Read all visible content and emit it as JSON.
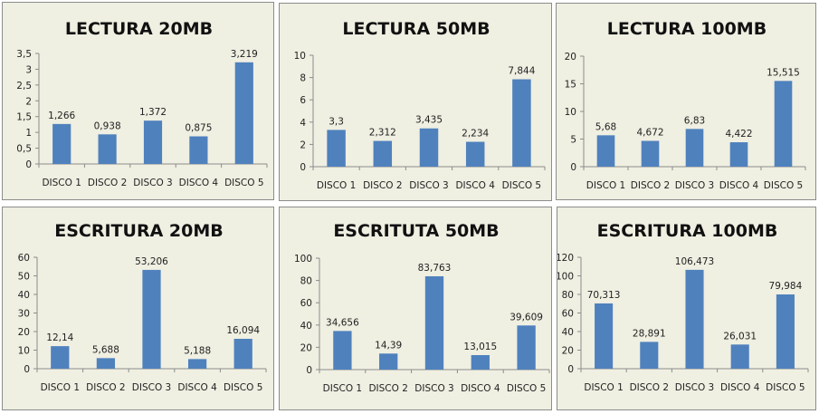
{
  "colors": {
    "bar": "#4f81bd",
    "panel": "#efefe2",
    "axis": "#8c8c8c"
  },
  "chart_data": [
    {
      "type": "bar",
      "title": "LECTURA 20MB",
      "categories": [
        "DISCO 1",
        "DISCO 2",
        "DISCO 3",
        "DISCO 4",
        "DISCO 5"
      ],
      "values": [
        1.266,
        0.938,
        1.372,
        0.875,
        3.219
      ],
      "value_labels": [
        "1,266",
        "0,938",
        "1,372",
        "0,875",
        "3,219"
      ],
      "yticks": [
        "0",
        "0,5",
        "1",
        "1,5",
        "2",
        "2,5",
        "3",
        "3,5"
      ],
      "ylim": [
        0,
        3.5
      ],
      "xlabel": "",
      "ylabel": "",
      "grid": false,
      "legend": "none"
    },
    {
      "type": "bar",
      "title": "LECTURA 50MB",
      "categories": [
        "DISCO 1",
        "DISCO 2",
        "DISCO 3",
        "DISCO 4",
        "DISCO 5"
      ],
      "values": [
        3.3,
        2.312,
        3.435,
        2.234,
        7.844
      ],
      "value_labels": [
        "3,3",
        "2,312",
        "3,435",
        "2,234",
        "7,844"
      ],
      "yticks": [
        "0",
        "2",
        "4",
        "6",
        "8",
        "10"
      ],
      "ylim": [
        0,
        10
      ],
      "xlabel": "",
      "ylabel": "",
      "grid": false,
      "legend": "none"
    },
    {
      "type": "bar",
      "title": "LECTURA 100MB",
      "categories": [
        "DISCO 1",
        "DISCO 2",
        "DISCO 3",
        "DISCO 4",
        "DISCO 5"
      ],
      "values": [
        5.68,
        4.672,
        6.83,
        4.422,
        15.515
      ],
      "value_labels": [
        "5,68",
        "4,672",
        "6,83",
        "4,422",
        "15,515"
      ],
      "yticks": [
        "0",
        "5",
        "10",
        "15",
        "20"
      ],
      "ylim": [
        0,
        20
      ],
      "xlabel": "",
      "ylabel": "",
      "grid": false,
      "legend": "none"
    },
    {
      "type": "bar",
      "title": "ESCRITURA 20MB",
      "categories": [
        "DISCO 1",
        "DISCO 2",
        "DISCO 3",
        "DISCO 4",
        "DISCO 5"
      ],
      "values": [
        12.14,
        5.688,
        53.206,
        5.188,
        16.094
      ],
      "value_labels": [
        "12,14",
        "5,688",
        "53,206",
        "5,188",
        "16,094"
      ],
      "yticks": [
        "0",
        "10",
        "20",
        "30",
        "40",
        "50",
        "60"
      ],
      "ylim": [
        0,
        60
      ],
      "xlabel": "",
      "ylabel": "",
      "grid": false,
      "legend": "none"
    },
    {
      "type": "bar",
      "title": "ESCRITUTA 50MB",
      "categories": [
        "DISCO 1",
        "DISCO 2",
        "DISCO 3",
        "DISCO 4",
        "DISCO 5"
      ],
      "values": [
        34.656,
        14.39,
        83.763,
        13.015,
        39.609
      ],
      "value_labels": [
        "34,656",
        "14,39",
        "83,763",
        "13,015",
        "39,609"
      ],
      "yticks": [
        "0",
        "20",
        "40",
        "60",
        "80",
        "100"
      ],
      "ylim": [
        0,
        100
      ],
      "xlabel": "",
      "ylabel": "",
      "grid": false,
      "legend": "none"
    },
    {
      "type": "bar",
      "title": "ESCRITURA 100MB",
      "categories": [
        "DISCO 1",
        "DISCO 2",
        "DISCO 3",
        "DISCO 4",
        "DISCO 5"
      ],
      "values": [
        70.313,
        28.891,
        106.473,
        26.031,
        79.984
      ],
      "value_labels": [
        "70,313",
        "28,891",
        "106,473",
        "26,031",
        "79,984"
      ],
      "yticks": [
        "0",
        "20",
        "40",
        "60",
        "80",
        "100",
        "120"
      ],
      "ylim": [
        0,
        120
      ],
      "xlabel": "",
      "ylabel": "",
      "grid": false,
      "legend": "none"
    }
  ]
}
